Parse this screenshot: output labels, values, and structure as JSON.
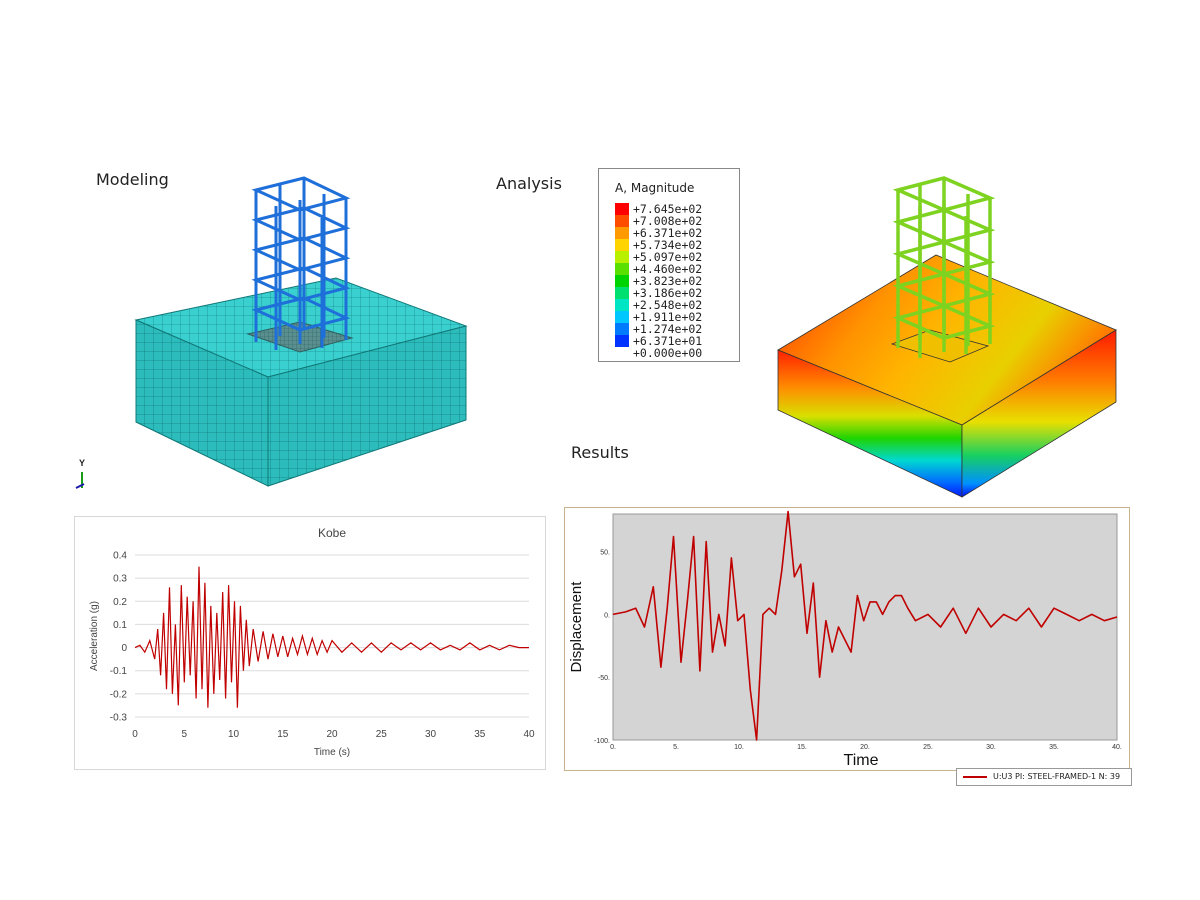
{
  "labels": {
    "modeling": "Modeling",
    "analysis": "Analysis",
    "results": "Results",
    "axis_y": "Y"
  },
  "contour_legend": {
    "title": "A, Magnitude",
    "entries": [
      {
        "value": "+7.645e+02",
        "color": "#ff0000"
      },
      {
        "value": "+7.008e+02",
        "color": "#ff4d00"
      },
      {
        "value": "+6.371e+02",
        "color": "#ff9900"
      },
      {
        "value": "+5.734e+02",
        "color": "#ffd400"
      },
      {
        "value": "+5.097e+02",
        "color": "#b8f000"
      },
      {
        "value": "+4.460e+02",
        "color": "#59e000"
      },
      {
        "value": "+3.823e+02",
        "color": "#00d400"
      },
      {
        "value": "+3.186e+02",
        "color": "#00e070"
      },
      {
        "value": "+2.548e+02",
        "color": "#00e6c4"
      },
      {
        "value": "+1.911e+02",
        "color": "#00c8ff"
      },
      {
        "value": "+1.274e+02",
        "color": "#007bff"
      },
      {
        "value": "+6.371e+01",
        "color": "#0033ff"
      },
      {
        "value": "+0.000e+00",
        "color": ""
      }
    ]
  },
  "colors": {
    "mesh_soil": "#2fc7c7",
    "mesh_frame": "#1e6fd9",
    "result_frame": "#7ed321",
    "signal": "#c00000",
    "plot_bg": "#d4d4d4"
  },
  "chart_data": [
    {
      "type": "line",
      "title": "Kobe",
      "xlabel": "Time (s)",
      "ylabel": "Acceleration (g)",
      "xlim": [
        0,
        40
      ],
      "ylim": [
        -0.3,
        0.4
      ],
      "x_ticks": [
        "0",
        "5",
        "10",
        "15",
        "20",
        "25",
        "30",
        "35",
        "40"
      ],
      "y_ticks": [
        "0.4",
        "0.3",
        "0.2",
        "0.1",
        "0",
        "-0.1",
        "-0.2",
        "-0.3"
      ],
      "series": [
        {
          "x": [
            0,
            0.5,
            1,
            1.5,
            2,
            2.3,
            2.6,
            2.9,
            3.2,
            3.5,
            3.8,
            4.1,
            4.4,
            4.7,
            5.0,
            5.3,
            5.6,
            5.9,
            6.2,
            6.5,
            6.8,
            7.1,
            7.4,
            7.7,
            8.0,
            8.3,
            8.6,
            8.9,
            9.2,
            9.5,
            9.8,
            10.1,
            10.4,
            10.7,
            11.0,
            11.3,
            11.6,
            12.0,
            12.5,
            13,
            13.5,
            14,
            14.5,
            15,
            15.5,
            16,
            16.5,
            17,
            17.5,
            18,
            18.5,
            19,
            19.5,
            20,
            21,
            22,
            23,
            24,
            25,
            26,
            27,
            28,
            29,
            30,
            31,
            32,
            33,
            34,
            35,
            36,
            37,
            38,
            39,
            40
          ],
          "y": [
            0,
            0.01,
            -0.02,
            0.03,
            -0.05,
            0.08,
            -0.12,
            0.15,
            -0.18,
            0.26,
            -0.2,
            0.1,
            -0.25,
            0.27,
            -0.15,
            0.22,
            -0.12,
            0.2,
            -0.22,
            0.35,
            -0.18,
            0.28,
            -0.26,
            0.18,
            -0.2,
            0.15,
            -0.14,
            0.24,
            -0.22,
            0.27,
            -0.15,
            0.2,
            -0.26,
            0.18,
            -0.1,
            0.12,
            -0.08,
            0.08,
            -0.06,
            0.07,
            -0.05,
            0.06,
            -0.04,
            0.05,
            -0.04,
            0.04,
            -0.03,
            0.05,
            -0.03,
            0.04,
            -0.03,
            0.03,
            -0.02,
            0.03,
            -0.02,
            0.02,
            -0.02,
            0.02,
            -0.02,
            0.02,
            -0.01,
            0.02,
            -0.01,
            0.02,
            -0.01,
            0.01,
            -0.01,
            0.02,
            -0.01,
            0.01,
            -0.01,
            0.01,
            0,
            0
          ]
        }
      ]
    },
    {
      "type": "line",
      "title": "",
      "xlabel": "Time",
      "ylabel": "Displacement",
      "xlim": [
        0,
        40
      ],
      "ylim": [
        -100,
        80
      ],
      "x_ticks": [
        "0.",
        "5.",
        "10.",
        "15.",
        "20.",
        "25.",
        "30.",
        "35.",
        "40."
      ],
      "y_ticks": [
        "50.",
        "0.",
        "-50.",
        "-100."
      ],
      "series": [
        {
          "name": "U:U3 PI: STEEL-FRAMED-1 N: 39",
          "x": [
            0,
            1,
            1.8,
            2.5,
            3.2,
            3.8,
            4.3,
            4.8,
            5.4,
            5.9,
            6.4,
            6.9,
            7.4,
            7.9,
            8.4,
            8.9,
            9.4,
            9.9,
            10.4,
            10.9,
            11.4,
            11.9,
            12.4,
            12.9,
            13.4,
            13.9,
            14.4,
            14.9,
            15.4,
            15.9,
            16.4,
            16.9,
            17.4,
            17.9,
            18.4,
            18.9,
            19.4,
            19.9,
            20.4,
            20.9,
            21.4,
            21.9,
            22.4,
            22.9,
            23.4,
            24,
            25,
            26,
            27,
            28,
            29,
            30,
            31,
            32,
            33,
            34,
            35,
            36,
            37,
            38,
            39,
            40
          ],
          "y": [
            0,
            2,
            5,
            -10,
            22,
            -42,
            5,
            62,
            -38,
            10,
            62,
            -45,
            58,
            -30,
            0,
            -25,
            45,
            -5,
            0,
            -60,
            -100,
            0,
            5,
            0,
            35,
            82,
            30,
            40,
            -15,
            25,
            -50,
            -5,
            -30,
            -10,
            -20,
            -30,
            15,
            -5,
            10,
            10,
            0,
            10,
            15,
            15,
            5,
            -5,
            0,
            -10,
            5,
            -15,
            5,
            -10,
            0,
            -5,
            5,
            -10,
            5,
            0,
            -5,
            0,
            -5,
            -2
          ]
        }
      ]
    }
  ]
}
